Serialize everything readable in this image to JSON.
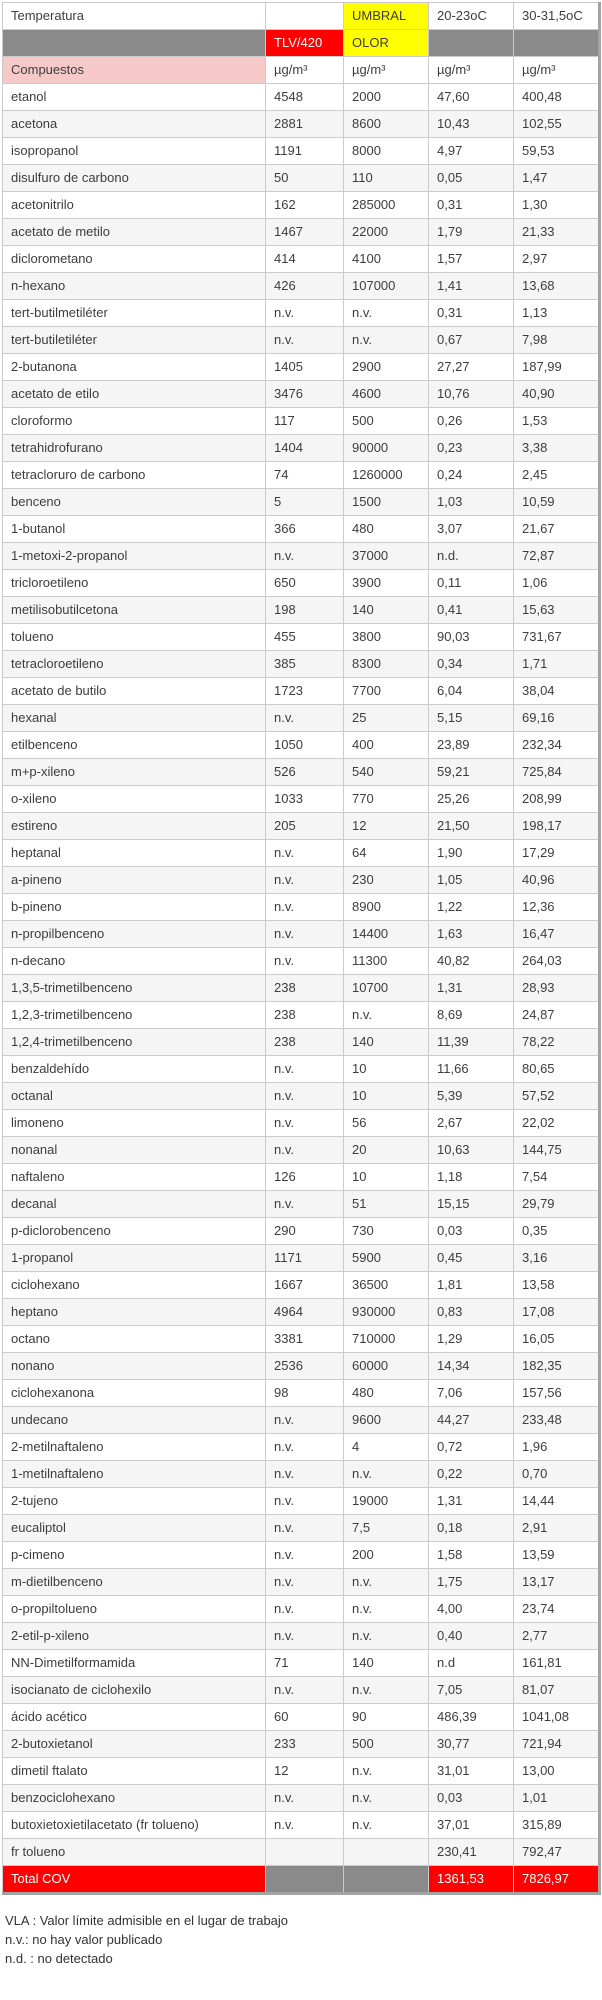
{
  "colors": {
    "red": "#ff0000",
    "yellow": "#ffff00",
    "gray": "#8a8a8a",
    "pink": "#f6c9c8",
    "alt_row": "#f5f5f5",
    "border": "#cbcbcb",
    "text": "#3d3d3d"
  },
  "header": {
    "temperatura": "Temperatura",
    "umbral": "UMBRAL",
    "temp_range_1": "20-23oC",
    "temp_range_2": "30-31,5oC",
    "tlv": "TLV/420",
    "olor": "OLOR",
    "compuestos": "Compuestos",
    "unit": "µg/m³"
  },
  "rows": [
    [
      "etanol",
      "4548",
      "2000",
      "47,60",
      "400,48"
    ],
    [
      "acetona",
      "2881",
      "8600",
      "10,43",
      "102,55"
    ],
    [
      "isopropanol",
      "1191",
      "8000",
      "4,97",
      "59,53"
    ],
    [
      "disulfuro de carbono",
      "50",
      "110",
      "0,05",
      "1,47"
    ],
    [
      "acetonitrilo",
      "162",
      "285000",
      "0,31",
      "1,30"
    ],
    [
      "acetato de metilo",
      "1467",
      "22000",
      "1,79",
      "21,33"
    ],
    [
      "diclorometano",
      "414",
      "4100",
      "1,57",
      "2,97"
    ],
    [
      "n-hexano",
      "426",
      "107000",
      "1,41",
      "13,68"
    ],
    [
      "tert-butilmetiléter",
      "n.v.",
      "n.v.",
      "0,31",
      "1,13"
    ],
    [
      "tert-butiletiléter",
      "n.v.",
      "n.v.",
      "0,67",
      "7,98"
    ],
    [
      "2-butanona",
      "1405",
      "2900",
      "27,27",
      "187,99"
    ],
    [
      "acetato de etilo",
      "3476",
      "4600",
      "10,76",
      "40,90"
    ],
    [
      "cloroformo",
      "117",
      "500",
      "0,26",
      "1,53"
    ],
    [
      "tetrahidrofurano",
      "1404",
      "90000",
      "0,23",
      "3,38"
    ],
    [
      "tetracloruro de carbono",
      "74",
      "1260000",
      "0,24",
      "2,45"
    ],
    [
      "benceno",
      "5",
      "1500",
      "1,03",
      "10,59"
    ],
    [
      "1-butanol",
      "366",
      "480",
      "3,07",
      "21,67"
    ],
    [
      "1-metoxi-2-propanol",
      "n.v.",
      "37000",
      "n.d.",
      "72,87"
    ],
    [
      "tricloroetileno",
      "650",
      "3900",
      "0,11",
      "1,06"
    ],
    [
      "metilisobutilcetona",
      "198",
      "140",
      "0,41",
      "15,63"
    ],
    [
      "tolueno",
      "455",
      "3800",
      "90,03",
      "731,67"
    ],
    [
      "tetracloroetileno",
      "385",
      "8300",
      "0,34",
      "1,71"
    ],
    [
      "acetato de butilo",
      "1723",
      "7700",
      "6,04",
      "38,04"
    ],
    [
      "hexanal",
      "n.v.",
      "25",
      "5,15",
      "69,16"
    ],
    [
      "etilbenceno",
      "1050",
      "400",
      "23,89",
      "232,34"
    ],
    [
      "m+p-xileno",
      "526",
      "540",
      "59,21",
      "725,84"
    ],
    [
      "o-xileno",
      "1033",
      "770",
      "25,26",
      "208,99"
    ],
    [
      "estireno",
      "205",
      "12",
      "21,50",
      "198,17"
    ],
    [
      "heptanal",
      "n.v.",
      "64",
      "1,90",
      "17,29"
    ],
    [
      "a-pineno",
      "n.v.",
      "230",
      "1,05",
      "40,96"
    ],
    [
      "b-pineno",
      "n.v.",
      "8900",
      "1,22",
      "12,36"
    ],
    [
      "n-propilbenceno",
      "n.v.",
      "14400",
      "1,63",
      "16,47"
    ],
    [
      "n-decano",
      "n.v.",
      "11300",
      "40,82",
      "264,03"
    ],
    [
      "1,3,5-trimetilbenceno",
      "238",
      "10700",
      "1,31",
      "28,93"
    ],
    [
      "1,2,3-trimetilbenceno",
      "238",
      "n.v.",
      "8,69",
      "24,87"
    ],
    [
      "1,2,4-trimetilbenceno",
      "238",
      "140",
      "11,39",
      "78,22"
    ],
    [
      "benzaldehído",
      "n.v.",
      "10",
      "11,66",
      "80,65"
    ],
    [
      "octanal",
      "n.v.",
      "10",
      "5,39",
      "57,52"
    ],
    [
      "limoneno",
      "n.v.",
      "56",
      "2,67",
      "22,02"
    ],
    [
      "nonanal",
      "n.v.",
      "20",
      "10,63",
      "144,75"
    ],
    [
      "naftaleno",
      "126",
      "10",
      "1,18",
      "7,54"
    ],
    [
      "decanal",
      "n.v.",
      "51",
      "15,15",
      "29,79"
    ],
    [
      "p-diclorobenceno",
      "290",
      "730",
      "0,03",
      "0,35"
    ],
    [
      "1-propanol",
      "1171",
      "5900",
      "0,45",
      "3,16"
    ],
    [
      "ciclohexano",
      "1667",
      "36500",
      "1,81",
      "13,58"
    ],
    [
      "heptano",
      "4964",
      "930000",
      "0,83",
      "17,08"
    ],
    [
      "octano",
      "3381",
      "710000",
      "1,29",
      "16,05"
    ],
    [
      "nonano",
      "2536",
      "60000",
      "14,34",
      "182,35"
    ],
    [
      "ciclohexanona",
      "98",
      "480",
      "7,06",
      "157,56"
    ],
    [
      "undecano",
      "n.v.",
      "9600",
      "44,27",
      "233,48"
    ],
    [
      "2-metilnaftaleno",
      "n.v.",
      "4",
      "0,72",
      "1,96"
    ],
    [
      "1-metilnaftaleno",
      "n.v.",
      "n.v.",
      "0,22",
      "0,70"
    ],
    [
      "2-tujeno",
      "n.v.",
      "19000",
      "1,31",
      "14,44"
    ],
    [
      "eucaliptol",
      "n.v.",
      "7,5",
      "0,18",
      "2,91"
    ],
    [
      "p-cimeno",
      "n.v.",
      "200",
      "1,58",
      "13,59"
    ],
    [
      "m-dietilbenceno",
      "n.v.",
      "n.v.",
      "1,75",
      "13,17"
    ],
    [
      "o-propiltolueno",
      "n.v.",
      "n.v.",
      "4,00",
      "23,74"
    ],
    [
      "2-etil-p-xileno",
      "n.v.",
      "n.v.",
      "0,40",
      "2,77"
    ],
    [
      "NN-Dimetilformamida",
      "71",
      "140",
      "n.d",
      "161,81"
    ],
    [
      "isocianato de ciclohexilo",
      "n.v.",
      "n.v.",
      "7,05",
      "81,07"
    ],
    [
      "ácido acético",
      "60",
      "90",
      "486,39",
      "1041,08"
    ],
    [
      "2-butoxietanol",
      "233",
      "500",
      "30,77",
      "721,94"
    ],
    [
      "dimetil ftalato",
      "12",
      "n.v.",
      "31,01",
      "13,00"
    ],
    [
      "benzociclohexano",
      "n.v.",
      "n.v.",
      "0,03",
      "1,01"
    ],
    [
      "butoxietoxietilacetato (fr tolueno)",
      "n.v.",
      "n.v.",
      "37,01",
      "315,89"
    ],
    [
      "fr tolueno",
      "",
      "",
      "230,41",
      "792,47"
    ]
  ],
  "total": {
    "label": "Total COV",
    "value_20_23": "1361,53",
    "value_30_31": "7826,97"
  },
  "footnotes": [
    "VLA : Valor límite admisible en el lugar de trabajo",
    "n.v.: no hay valor publicado",
    "n.d. : no detectado"
  ]
}
